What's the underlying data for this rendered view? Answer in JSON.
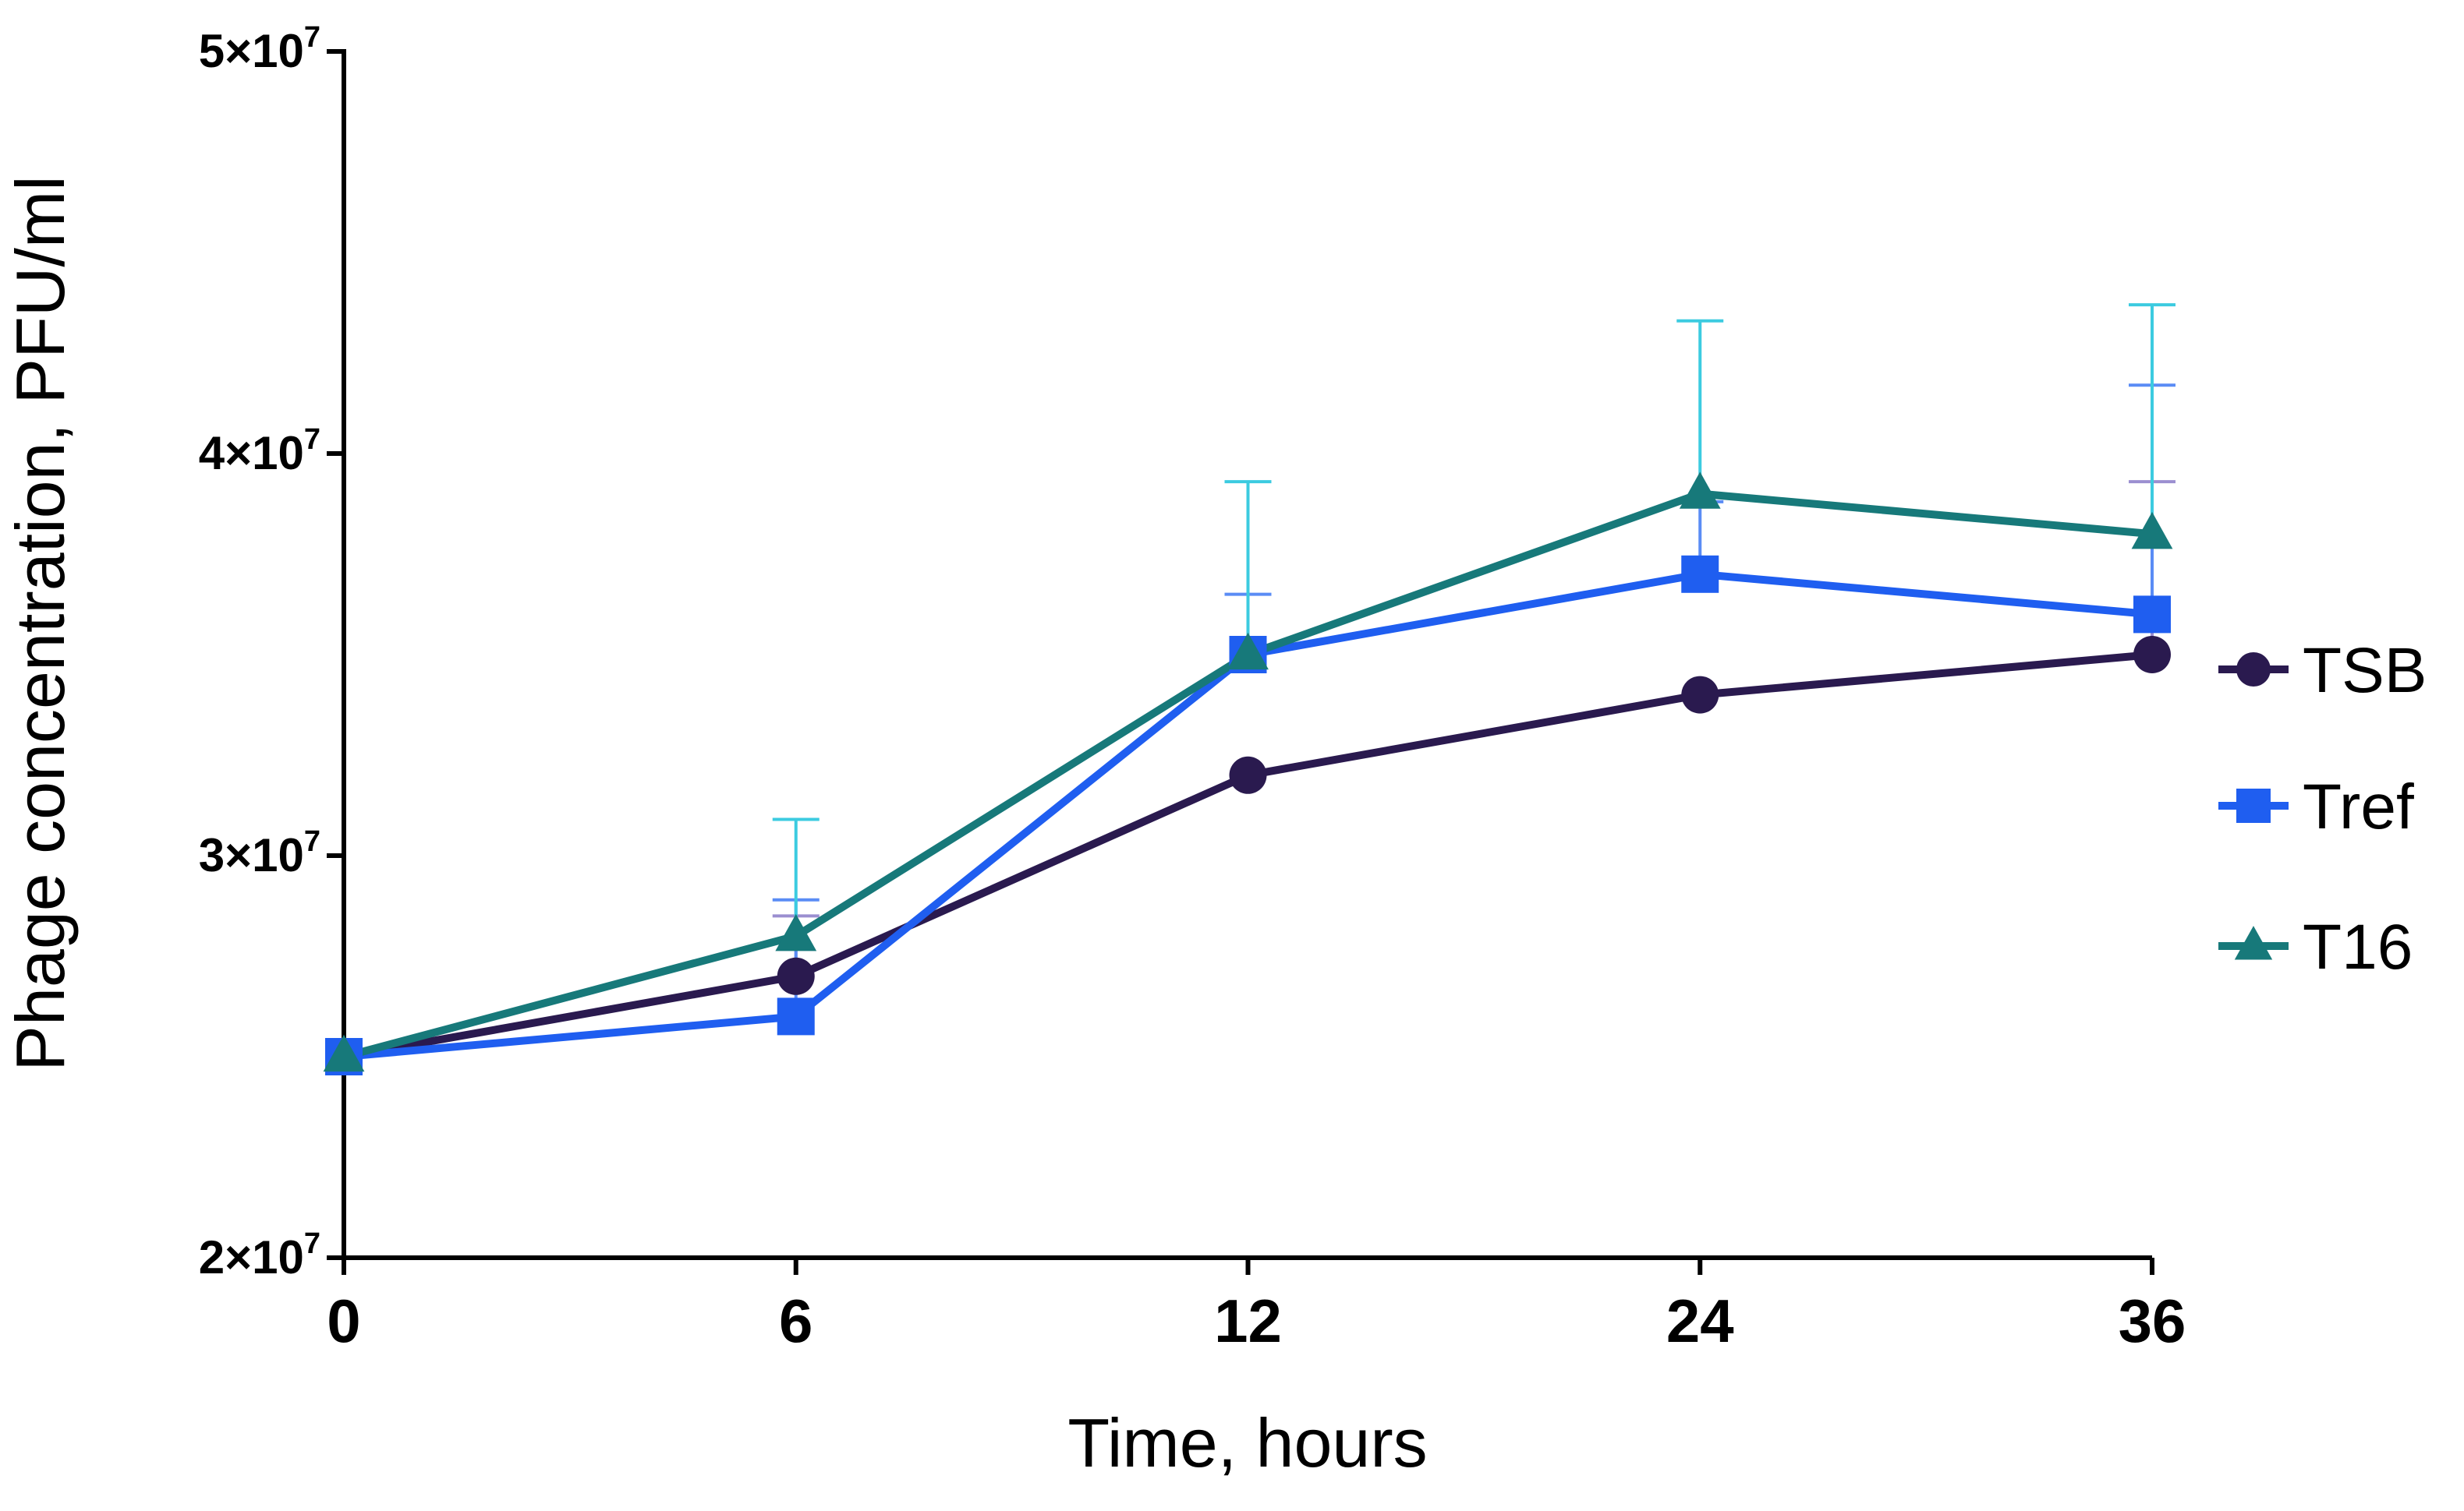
{
  "chart_data": {
    "type": "line",
    "title": "",
    "xlabel": "Time, hours",
    "ylabel": "Phage concentration, PFU/ml",
    "categories": [
      "0",
      "6",
      "12",
      "24",
      "36"
    ],
    "ylim": [
      20000000,
      50000000
    ],
    "yticks": [
      {
        "value": 20000000,
        "mant": "2×10",
        "exp": "7"
      },
      {
        "value": 30000000,
        "mant": "3×10",
        "exp": "7"
      },
      {
        "value": 40000000,
        "mant": "4×10",
        "exp": "7"
      },
      {
        "value": 50000000,
        "mant": "5×10",
        "exp": "7"
      }
    ],
    "grid": false,
    "legend_position": "right",
    "series": [
      {
        "name": "TSB",
        "marker": "circle",
        "color": "#2a1a4f",
        "error_color": "#9b8fd0",
        "values": [
          25000000,
          27000000,
          32000000,
          34000000,
          35000000
        ],
        "error_upper": [
          25000000,
          28500000,
          32000000,
          34000000,
          39300000
        ]
      },
      {
        "name": "Tref",
        "marker": "square",
        "color": "#1f5ef0",
        "error_color": "#5a8cf5",
        "values": [
          25000000,
          26000000,
          35000000,
          37000000,
          36000000
        ],
        "error_upper": [
          25000000,
          28900000,
          36500000,
          38800000,
          41700000
        ]
      },
      {
        "name": "T16",
        "marker": "triangle",
        "color": "#17797a",
        "error_color": "#3ccbe0",
        "values": [
          25000000,
          28000000,
          35000000,
          39000000,
          38000000
        ],
        "error_upper": [
          25000000,
          30900000,
          39300000,
          43300000,
          43700000
        ]
      }
    ]
  }
}
